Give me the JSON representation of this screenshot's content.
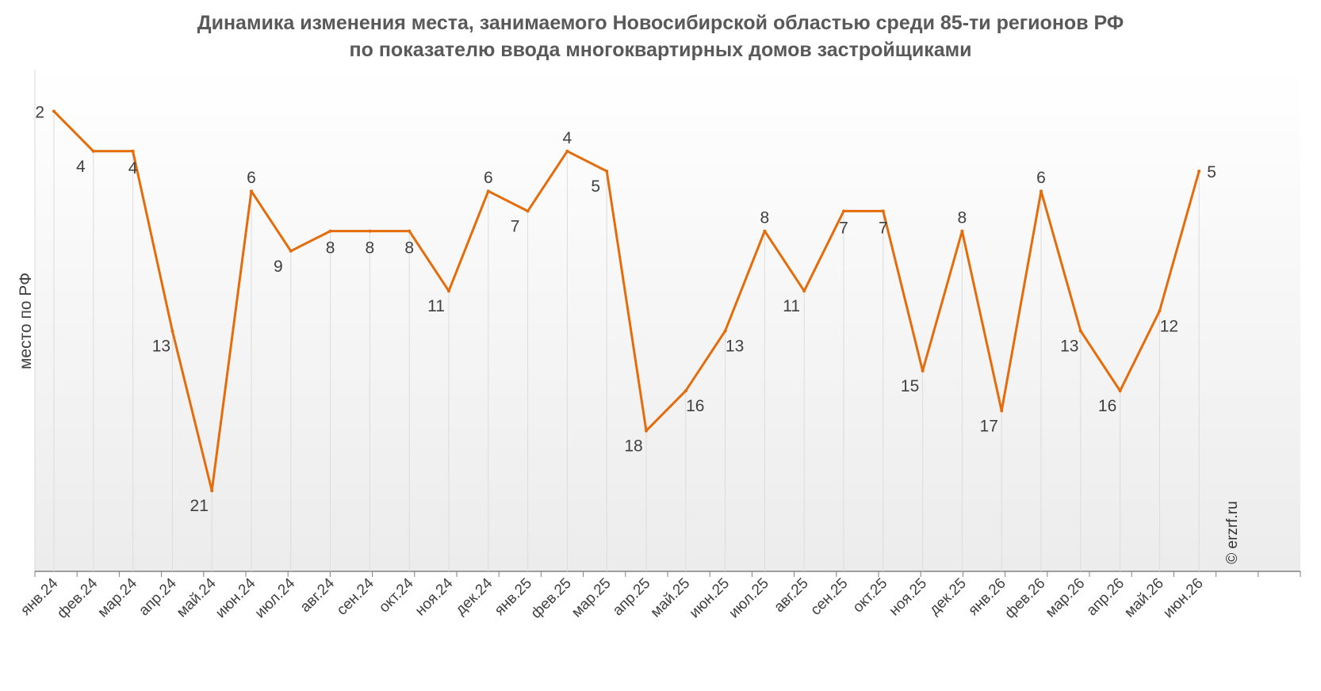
{
  "chart_data": {
    "type": "line",
    "title_line1": "Динамика изменения места, занимаемого Новосибирской областью среди 85-ти регионов РФ",
    "title_line2": "по показателю ввода многоквартирных домов застройщиками",
    "ylabel": "место по РФ",
    "watermark": "© erzrf.ru",
    "categories": [
      "янв.24",
      "фев.24",
      "мар.24",
      "апр.24",
      "май.24",
      "июн.24",
      "июл.24",
      "авг.24",
      "сен.24",
      "окт.24",
      "ноя.24",
      "дек.24",
      "янв.25",
      "фев.25",
      "мар.25",
      "апр.25",
      "май.25",
      "июн.25",
      "июл.25",
      "авг.25",
      "сен.25",
      "окт.25",
      "ноя.25",
      "дек.25",
      "янв.26",
      "фев.26",
      "мар.26",
      "апр.26",
      "май.26",
      "июн.26"
    ],
    "values": [
      2,
      4,
      4,
      13,
      21,
      6,
      9,
      8,
      8,
      8,
      11,
      6,
      7,
      4,
      5,
      18,
      16,
      13,
      8,
      11,
      7,
      7,
      15,
      8,
      17,
      6,
      13,
      16,
      12,
      5
    ],
    "y_inverted": true,
    "ylim": [
      0,
      25
    ],
    "line_color": "#e46c0a"
  }
}
